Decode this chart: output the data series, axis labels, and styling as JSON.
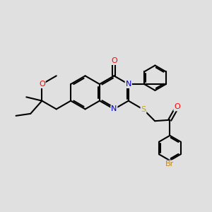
{
  "background_color": "#e0e0e0",
  "bond_color": "#000000",
  "atom_colors": {
    "O": "#ff0000",
    "N": "#0000cc",
    "S": "#bbaa00",
    "Br": "#cc8800",
    "C": "#000000"
  },
  "figsize": [
    3.0,
    3.0
  ],
  "dpi": 100,
  "xlim": [
    0,
    10
  ],
  "ylim": [
    0,
    10
  ]
}
